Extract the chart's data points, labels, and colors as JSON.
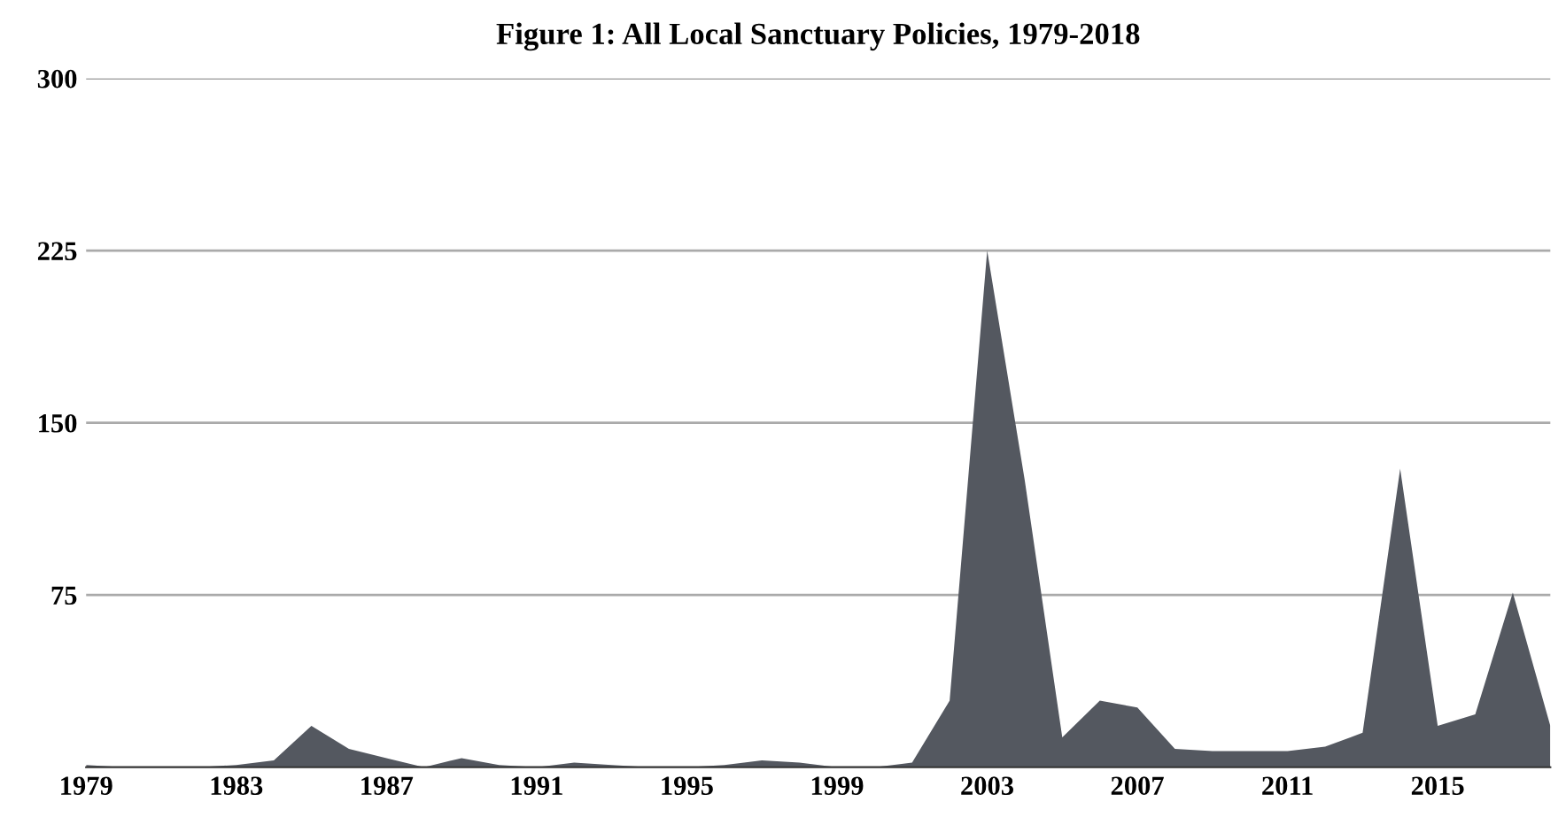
{
  "chart_data": {
    "type": "area",
    "title": "Figure 1: All Local Sanctuary Policies, 1979-2018",
    "x": [
      1979,
      1980,
      1981,
      1982,
      1983,
      1984,
      1985,
      1986,
      1987,
      1988,
      1989,
      1990,
      1991,
      1992,
      1993,
      1994,
      1995,
      1996,
      1997,
      1998,
      1999,
      2000,
      2001,
      2002,
      2003,
      2004,
      2005,
      2006,
      2007,
      2008,
      2009,
      2010,
      2011,
      2012,
      2013,
      2014,
      2015,
      2016,
      2017,
      2018
    ],
    "series": [
      {
        "color": "#545860",
        "values": [
          1,
          0,
          0,
          0,
          1,
          3,
          18,
          8,
          4,
          0,
          4,
          1,
          0,
          2,
          1,
          0,
          0,
          1,
          3,
          2,
          0,
          0,
          2,
          29,
          225,
          125,
          13,
          29,
          26,
          8,
          7,
          7,
          7,
          9,
          15,
          130,
          18,
          23,
          76,
          18
        ]
      }
    ],
    "xlim": [
      1979,
      2018
    ],
    "xticks": [
      1979,
      1983,
      1987,
      1991,
      1995,
      1999,
      2003,
      2007,
      2011,
      2015
    ],
    "ylim": [
      0,
      300
    ],
    "yticks": [
      {
        "value": 0,
        "label": null
      },
      75,
      150,
      225,
      300
    ],
    "grid": "y"
  }
}
